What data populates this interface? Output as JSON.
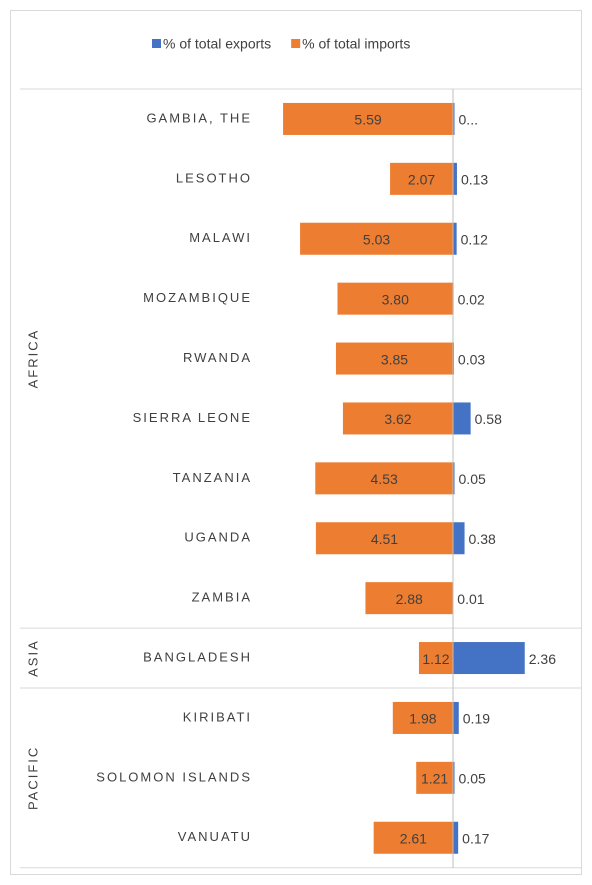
{
  "chart_data": {
    "type": "bar",
    "orientation": "horizontal",
    "groups": [
      {
        "name": "AFRICA",
        "categories": [
          "GAMBIA, THE",
          "LESOTHO",
          "MALAWI",
          "MOZAMBIQUE",
          "RWANDA",
          "SIERRA LEONE",
          "TANZANIA",
          "UGANDA",
          "ZAMBIA"
        ]
      },
      {
        "name": "ASIA",
        "categories": [
          "BANGLADESH"
        ]
      },
      {
        "name": "PACIFIC",
        "categories": [
          "KIRIBATI",
          "SOLOMON ISLANDS",
          "VANUATU"
        ]
      }
    ],
    "series": [
      {
        "name": "% of total exports",
        "color": "#4472c4",
        "values": [
          0.05,
          0.13,
          0.12,
          0.02,
          0.03,
          0.58,
          0.05,
          0.38,
          0.01,
          2.36,
          0.19,
          0.05,
          0.17
        ],
        "value_labels": [
          "0...",
          "0.13",
          "0.12",
          "0.02",
          "0.03",
          "0.58",
          "0.05",
          "0.38",
          "0.01",
          "2.36",
          "0.19",
          "0.05",
          "0.17"
        ]
      },
      {
        "name": "% of total imports",
        "color": "#ed7d31",
        "values": [
          5.59,
          2.07,
          5.03,
          3.8,
          3.85,
          3.62,
          4.53,
          4.51,
          2.88,
          1.12,
          1.98,
          1.21,
          2.61
        ],
        "value_labels": [
          "5.59",
          "2.07",
          "5.03",
          "3.80",
          "3.85",
          "3.62",
          "4.53",
          "4.51",
          "2.88",
          "1.12",
          "1.98",
          "1.21",
          "2.61"
        ]
      }
    ],
    "legend": "top"
  }
}
